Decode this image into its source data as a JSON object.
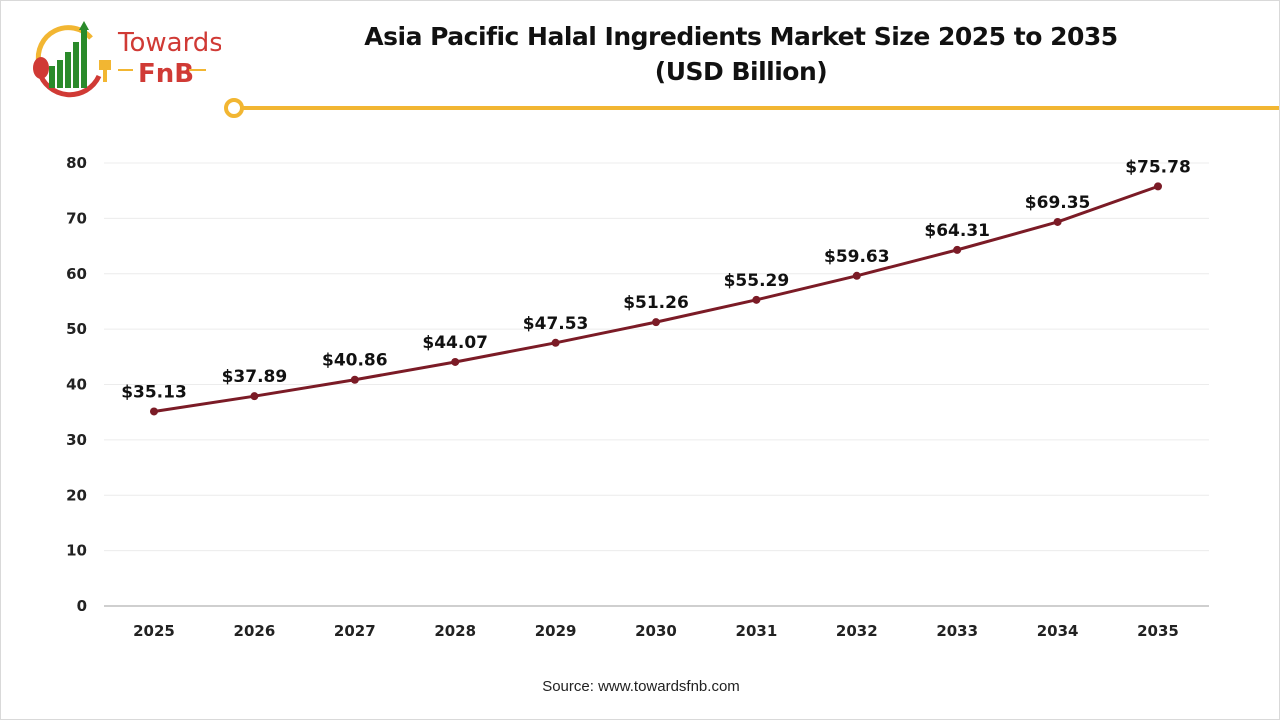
{
  "logo": {
    "text_top": "Towards",
    "text_bottom": "FnB",
    "colors": {
      "red": "#d03a35",
      "green": "#2a8a2a",
      "yellow": "#f2b632"
    }
  },
  "accent_color": "#f2b632",
  "line_color": "#7b1b26",
  "source": "Source: www.towardsfnb.com",
  "chart_data": {
    "type": "line",
    "title_line1": "Asia Pacific Halal Ingredients Market Size 2025 to 2035",
    "title_line2": "(USD Billion)",
    "categories": [
      "2025",
      "2026",
      "2027",
      "2028",
      "2029",
      "2030",
      "2031",
      "2032",
      "2033",
      "2034",
      "2035"
    ],
    "values": [
      35.13,
      37.89,
      40.86,
      44.07,
      47.53,
      51.26,
      55.29,
      59.63,
      64.31,
      69.35,
      75.78
    ],
    "data_labels": [
      "$35.13",
      "$37.89",
      "$40.86",
      "$44.07",
      "$47.53",
      "$51.26",
      "$55.29",
      "$59.63",
      "$64.31",
      "$69.35",
      "$75.78"
    ],
    "yticks": [
      "0",
      "10",
      "20",
      "30",
      "40",
      "50",
      "60",
      "70",
      "80"
    ],
    "ylim": [
      0,
      80
    ],
    "xlabel": "",
    "ylabel": "",
    "grid": true,
    "legend": "none"
  }
}
